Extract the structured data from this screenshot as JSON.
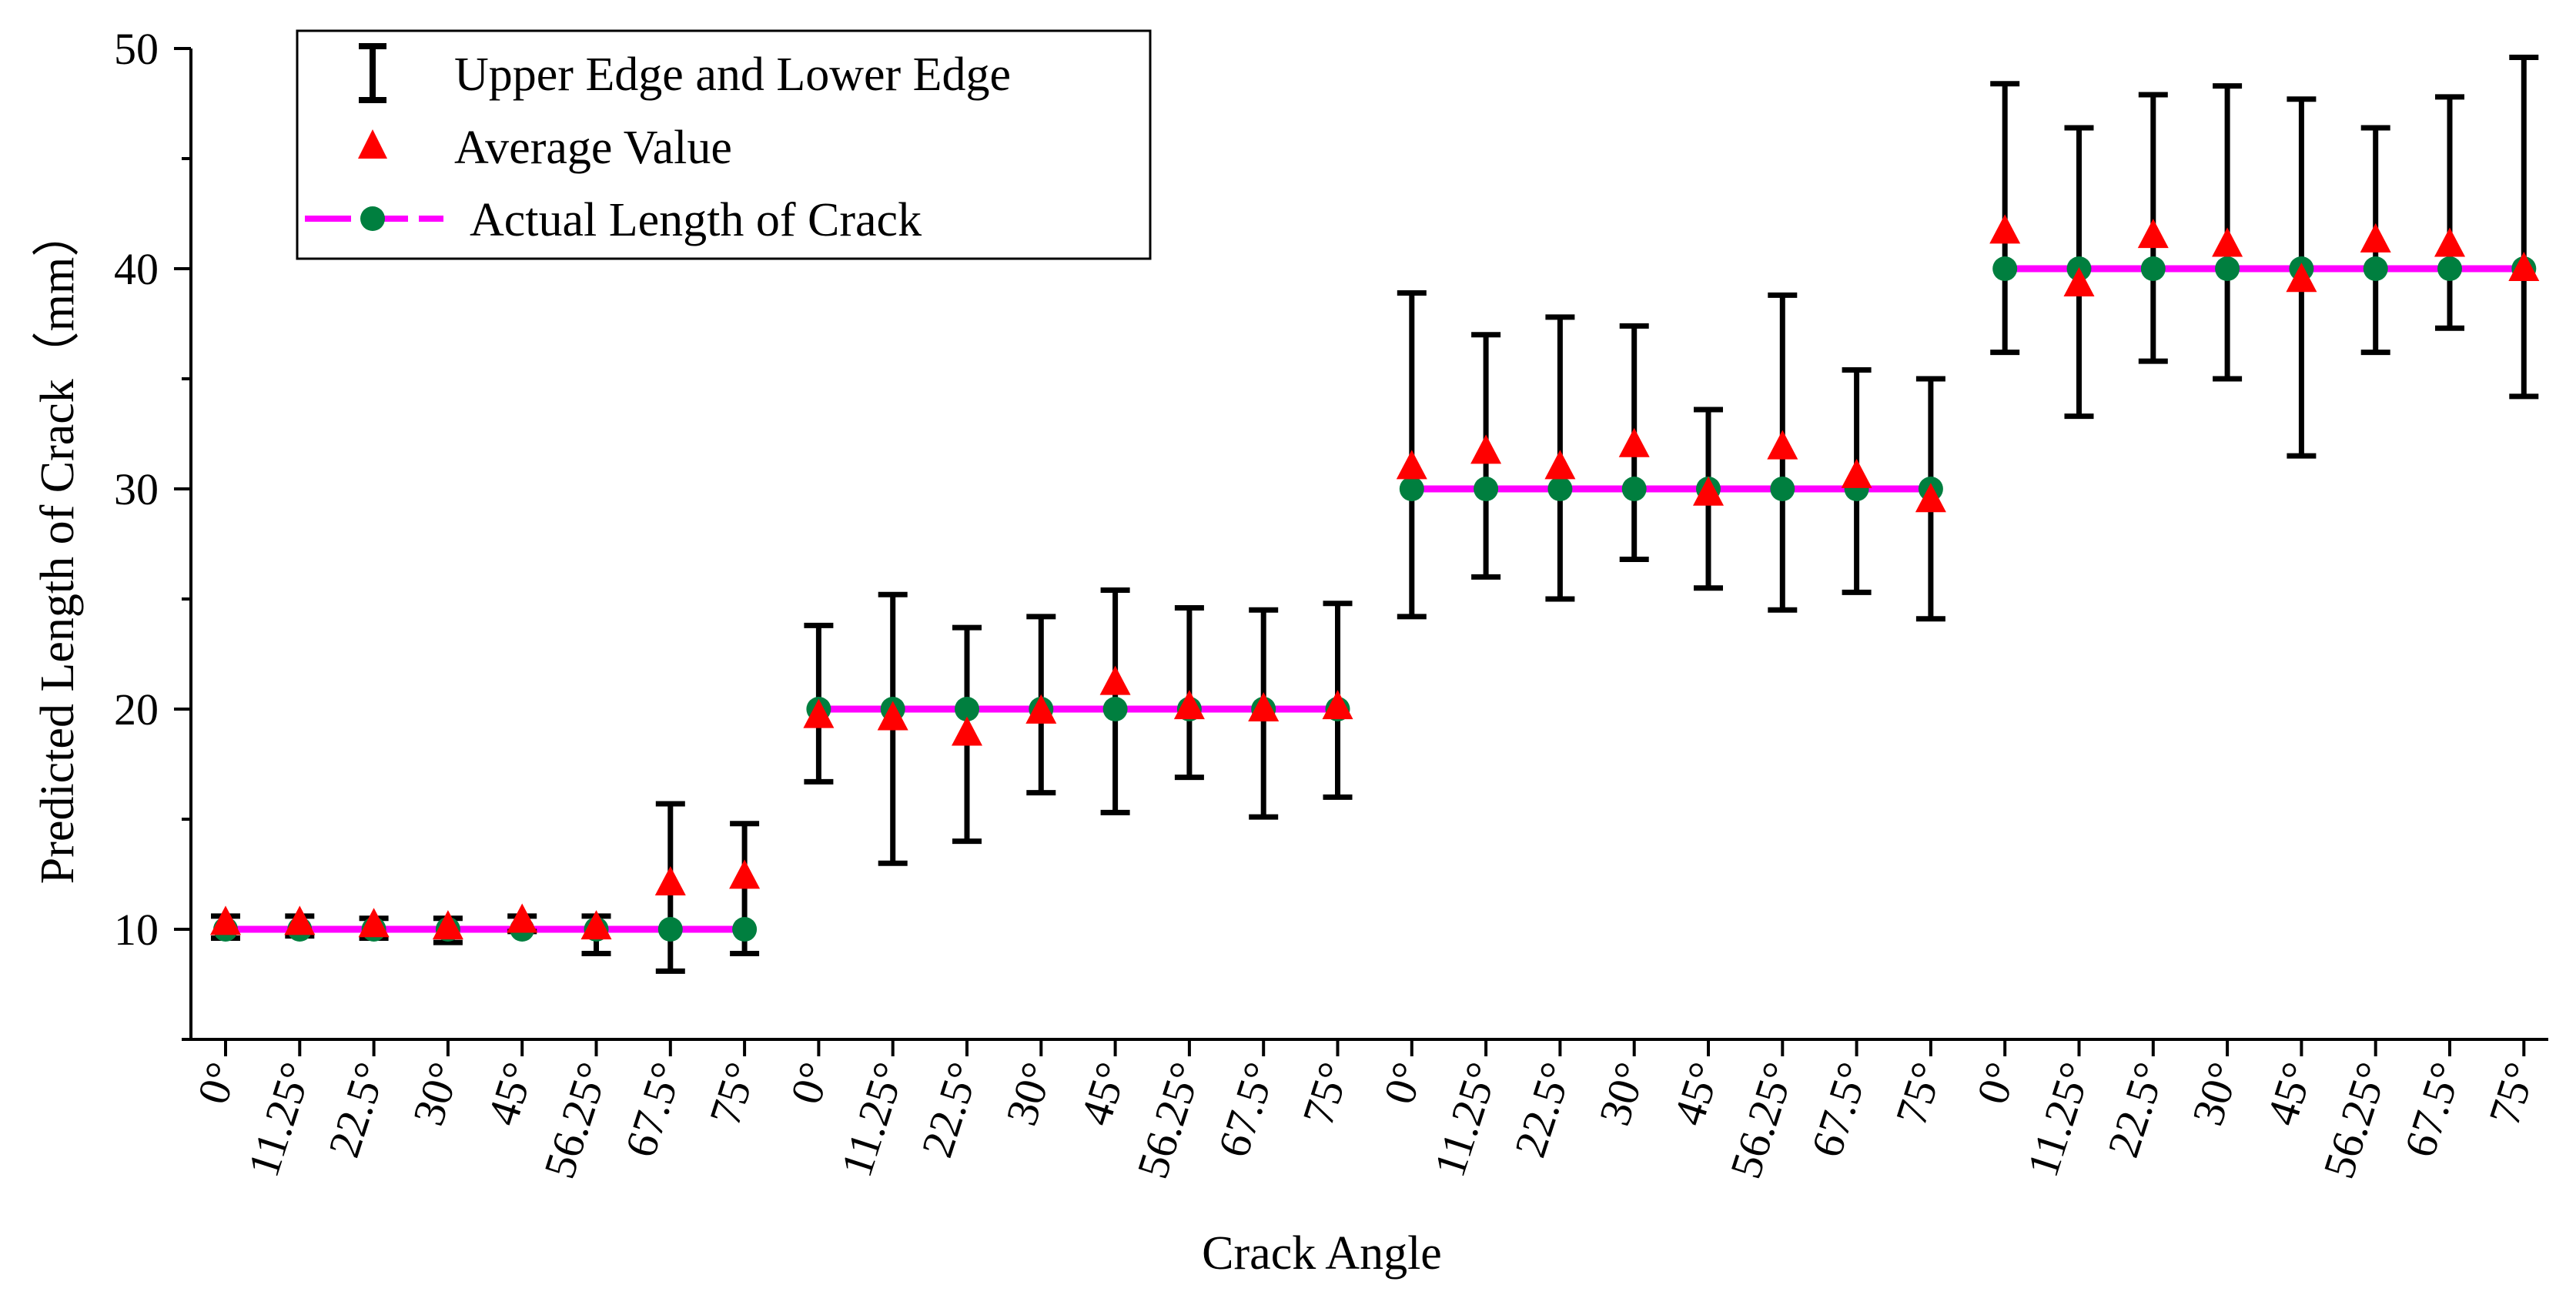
{
  "chart_data": {
    "type": "errorbar",
    "title": "",
    "xlabel": "Crack Angle",
    "ylabel": "Predicted Length of Crack（mm）",
    "ylim": [
      5,
      50
    ],
    "yticks": [
      10,
      20,
      30,
      40,
      50
    ],
    "grid": false,
    "legend_position": "top-left",
    "legend": [
      {
        "key": "errorbar",
        "label": "Upper Edge and Lower Edge"
      },
      {
        "key": "average",
        "label": "Average Value"
      },
      {
        "key": "actual",
        "label": "Actual Length of Crack"
      }
    ],
    "colors": {
      "errorbar": "#000000",
      "average": "#ff0000",
      "actual_line": "#ff00ff",
      "actual_marker": "#007f3f"
    },
    "categories": [
      "0°",
      "11.25°",
      "22.5°",
      "30°",
      "45°",
      "56.25°",
      "67.5°",
      "75°",
      "0°",
      "11.25°",
      "22.5°",
      "30°",
      "45°",
      "56.25°",
      "67.5°",
      "75°",
      "0°",
      "11.25°",
      "22.5°",
      "30°",
      "45°",
      "56.25°",
      "67.5°",
      "75°",
      "0°",
      "11.25°",
      "22.5°",
      "30°",
      "45°",
      "56.25°",
      "67.5°",
      "75°"
    ],
    "groups": [
      {
        "actual": 10,
        "average": [
          10.3,
          10.3,
          10.2,
          10.1,
          10.4,
          10.1,
          12.1,
          12.4
        ],
        "upper": [
          10.6,
          10.6,
          10.5,
          10.5,
          10.6,
          10.6,
          15.7,
          14.8
        ],
        "lower": [
          9.6,
          9.7,
          9.6,
          9.4,
          9.9,
          8.9,
          8.1,
          8.9
        ]
      },
      {
        "actual": 20,
        "average": [
          19.7,
          19.6,
          18.9,
          19.9,
          21.2,
          20.1,
          20.0,
          20.1
        ],
        "upper": [
          23.8,
          25.2,
          23.7,
          24.2,
          25.4,
          24.6,
          24.5,
          24.8
        ],
        "lower": [
          16.7,
          13.0,
          14.0,
          16.2,
          15.3,
          16.9,
          15.1,
          16.0
        ]
      },
      {
        "actual": 30,
        "average": [
          31.0,
          31.7,
          31.0,
          32.0,
          29.8,
          31.9,
          30.6,
          29.5
        ],
        "upper": [
          38.9,
          37.0,
          37.8,
          37.4,
          33.6,
          38.8,
          35.4,
          35.0
        ],
        "lower": [
          24.2,
          26.0,
          25.0,
          26.8,
          25.5,
          24.5,
          25.3,
          24.1
        ]
      },
      {
        "actual": 40,
        "average": [
          41.7,
          39.3,
          41.5,
          41.1,
          39.5,
          41.3,
          41.1,
          40.0
        ],
        "upper": [
          48.4,
          46.4,
          47.9,
          48.3,
          47.7,
          46.4,
          47.8,
          49.6
        ],
        "lower": [
          36.2,
          33.3,
          35.8,
          35.0,
          31.5,
          36.2,
          37.3,
          34.2
        ]
      }
    ]
  }
}
